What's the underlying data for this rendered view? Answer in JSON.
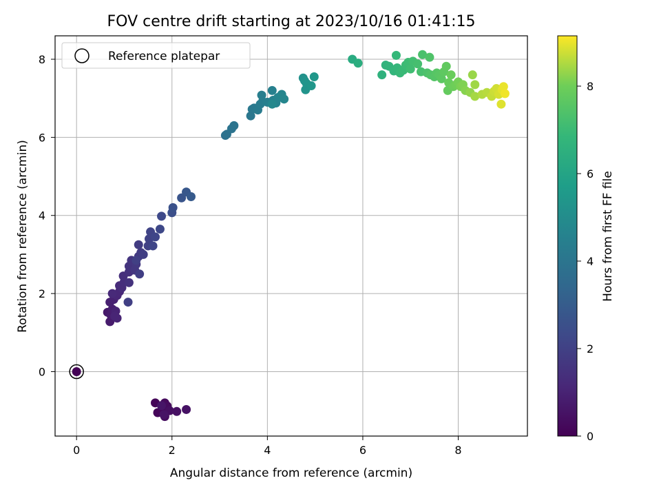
{
  "chart_data": {
    "type": "scatter",
    "title": "FOV centre drift starting at 2023/10/16 01:41:15",
    "xlabel": "Angular distance from reference (arcmin)",
    "ylabel": "Rotation from reference (arcmin)",
    "xlim": [
      -0.45,
      9.45
    ],
    "ylim": [
      -1.65,
      8.6
    ],
    "xticks": [
      0,
      2,
      4,
      6,
      8
    ],
    "yticks": [
      0,
      2,
      4,
      6,
      8
    ],
    "grid": true,
    "legend": {
      "position": "top-left",
      "entries": [
        "Reference platepar"
      ]
    },
    "reference_point": {
      "x": 0,
      "y": 0
    },
    "colorbar": {
      "label": "Hours from first FF file",
      "min": 0,
      "max": 9.15,
      "ticks": [
        0,
        2,
        4,
        6,
        8
      ],
      "colormap": "viridis"
    },
    "points": [
      {
        "x": 0,
        "y": 0,
        "c": 0.05
      },
      {
        "x": 1.65,
        "y": -0.8,
        "c": 0.1
      },
      {
        "x": 1.7,
        "y": -1.05,
        "c": 0.15
      },
      {
        "x": 1.8,
        "y": -0.95,
        "c": 0.2
      },
      {
        "x": 1.85,
        "y": -0.8,
        "c": 0.25
      },
      {
        "x": 1.9,
        "y": -0.88,
        "c": 0.3
      },
      {
        "x": 1.85,
        "y": -1.15,
        "c": 0.35
      },
      {
        "x": 1.95,
        "y": -1.0,
        "c": 0.4
      },
      {
        "x": 2.1,
        "y": -1.02,
        "c": 0.45
      },
      {
        "x": 2.3,
        "y": -0.97,
        "c": 0.5
      },
      {
        "x": 1.83,
        "y": -1.1,
        "c": 0.55
      },
      {
        "x": 1.78,
        "y": -0.87,
        "c": 0.6
      },
      {
        "x": 0.65,
        "y": 1.52,
        "c": 0.7
      },
      {
        "x": 0.7,
        "y": 1.28,
        "c": 0.75
      },
      {
        "x": 0.72,
        "y": 1.45,
        "c": 0.8
      },
      {
        "x": 0.75,
        "y": 1.6,
        "c": 0.85
      },
      {
        "x": 0.7,
        "y": 1.78,
        "c": 0.9
      },
      {
        "x": 0.78,
        "y": 1.85,
        "c": 0.95
      },
      {
        "x": 0.82,
        "y": 1.55,
        "c": 1.0
      },
      {
        "x": 0.85,
        "y": 1.37,
        "c": 1.02
      },
      {
        "x": 0.8,
        "y": 1.42,
        "c": 1.05
      },
      {
        "x": 0.85,
        "y": 1.95,
        "c": 1.1
      },
      {
        "x": 0.9,
        "y": 2.05,
        "c": 1.15
      },
      {
        "x": 0.75,
        "y": 2.0,
        "c": 1.2
      },
      {
        "x": 0.9,
        "y": 2.2,
        "c": 1.25
      },
      {
        "x": 0.95,
        "y": 2.15,
        "c": 1.3
      },
      {
        "x": 1.0,
        "y": 2.3,
        "c": 1.35
      },
      {
        "x": 0.98,
        "y": 2.45,
        "c": 1.4
      },
      {
        "x": 1.1,
        "y": 2.55,
        "c": 1.45
      },
      {
        "x": 1.1,
        "y": 2.28,
        "c": 1.5
      },
      {
        "x": 1.1,
        "y": 2.7,
        "c": 1.55
      },
      {
        "x": 1.15,
        "y": 2.85,
        "c": 1.6
      },
      {
        "x": 1.22,
        "y": 2.6,
        "c": 1.65
      },
      {
        "x": 1.25,
        "y": 2.75,
        "c": 1.7
      },
      {
        "x": 1.3,
        "y": 2.95,
        "c": 1.75
      },
      {
        "x": 1.35,
        "y": 3.05,
        "c": 1.8
      },
      {
        "x": 1.3,
        "y": 3.25,
        "c": 1.85
      },
      {
        "x": 1.4,
        "y": 3.0,
        "c": 1.9
      },
      {
        "x": 1.32,
        "y": 2.5,
        "c": 1.92
      },
      {
        "x": 1.08,
        "y": 1.78,
        "c": 1.95
      },
      {
        "x": 1.25,
        "y": 2.85,
        "c": 1.97
      },
      {
        "x": 1.5,
        "y": 3.22,
        "c": 2.0
      },
      {
        "x": 1.52,
        "y": 3.4,
        "c": 2.05
      },
      {
        "x": 1.55,
        "y": 3.58,
        "c": 2.1
      },
      {
        "x": 1.6,
        "y": 3.22,
        "c": 2.15
      },
      {
        "x": 1.65,
        "y": 3.45,
        "c": 2.2
      },
      {
        "x": 1.75,
        "y": 3.65,
        "c": 2.25
      },
      {
        "x": 1.78,
        "y": 3.98,
        "c": 2.3
      },
      {
        "x": 2.0,
        "y": 4.07,
        "c": 2.5
      },
      {
        "x": 2.02,
        "y": 4.2,
        "c": 2.6
      },
      {
        "x": 2.2,
        "y": 4.45,
        "c": 2.7
      },
      {
        "x": 2.3,
        "y": 4.6,
        "c": 2.8
      },
      {
        "x": 2.4,
        "y": 4.48,
        "c": 2.9
      },
      {
        "x": 3.12,
        "y": 6.05,
        "c": 3.8
      },
      {
        "x": 3.15,
        "y": 6.08,
        "c": 3.85
      },
      {
        "x": 3.25,
        "y": 6.22,
        "c": 3.9
      },
      {
        "x": 3.3,
        "y": 6.3,
        "c": 3.95
      },
      {
        "x": 3.65,
        "y": 6.55,
        "c": 4.1
      },
      {
        "x": 3.68,
        "y": 6.72,
        "c": 4.15
      },
      {
        "x": 3.72,
        "y": 6.75,
        "c": 4.2
      },
      {
        "x": 3.8,
        "y": 6.7,
        "c": 4.25
      },
      {
        "x": 3.85,
        "y": 6.85,
        "c": 4.3
      },
      {
        "x": 3.9,
        "y": 6.92,
        "c": 4.35
      },
      {
        "x": 3.88,
        "y": 7.08,
        "c": 4.4
      },
      {
        "x": 4.0,
        "y": 6.9,
        "c": 4.45
      },
      {
        "x": 4.1,
        "y": 7.2,
        "c": 4.5
      },
      {
        "x": 4.12,
        "y": 6.95,
        "c": 4.55
      },
      {
        "x": 4.18,
        "y": 6.88,
        "c": 4.6
      },
      {
        "x": 4.22,
        "y": 7.02,
        "c": 4.65
      },
      {
        "x": 4.3,
        "y": 7.1,
        "c": 4.7
      },
      {
        "x": 4.35,
        "y": 6.98,
        "c": 4.75
      },
      {
        "x": 4.1,
        "y": 6.85,
        "c": 4.8
      },
      {
        "x": 4.75,
        "y": 7.52,
        "c": 5.2
      },
      {
        "x": 4.78,
        "y": 7.45,
        "c": 5.25
      },
      {
        "x": 4.8,
        "y": 7.22,
        "c": 5.3
      },
      {
        "x": 4.82,
        "y": 7.38,
        "c": 5.35
      },
      {
        "x": 4.92,
        "y": 7.32,
        "c": 5.4
      },
      {
        "x": 4.98,
        "y": 7.55,
        "c": 5.45
      },
      {
        "x": 5.78,
        "y": 8.0,
        "c": 6.3
      },
      {
        "x": 5.9,
        "y": 7.9,
        "c": 6.4
      },
      {
        "x": 6.4,
        "y": 7.6,
        "c": 6.6
      },
      {
        "x": 6.48,
        "y": 7.85,
        "c": 6.65
      },
      {
        "x": 6.55,
        "y": 7.82,
        "c": 6.7
      },
      {
        "x": 6.65,
        "y": 7.7,
        "c": 6.75
      },
      {
        "x": 6.72,
        "y": 7.78,
        "c": 6.8
      },
      {
        "x": 6.7,
        "y": 8.1,
        "c": 6.85
      },
      {
        "x": 6.78,
        "y": 7.65,
        "c": 6.9
      },
      {
        "x": 6.85,
        "y": 7.72,
        "c": 6.95
      },
      {
        "x": 6.9,
        "y": 7.85,
        "c": 7.0
      },
      {
        "x": 6.95,
        "y": 7.92,
        "c": 7.05
      },
      {
        "x": 7.0,
        "y": 7.75,
        "c": 7.1
      },
      {
        "x": 7.05,
        "y": 7.95,
        "c": 7.15
      },
      {
        "x": 7.15,
        "y": 7.88,
        "c": 7.2
      },
      {
        "x": 7.22,
        "y": 7.68,
        "c": 7.25
      },
      {
        "x": 7.25,
        "y": 8.12,
        "c": 7.3
      },
      {
        "x": 7.35,
        "y": 7.65,
        "c": 7.35
      },
      {
        "x": 7.4,
        "y": 8.05,
        "c": 7.4
      },
      {
        "x": 7.42,
        "y": 7.6,
        "c": 7.45
      },
      {
        "x": 7.5,
        "y": 7.55,
        "c": 7.5
      },
      {
        "x": 7.55,
        "y": 7.65,
        "c": 7.55
      },
      {
        "x": 7.6,
        "y": 7.6,
        "c": 7.6
      },
      {
        "x": 7.65,
        "y": 7.5,
        "c": 7.65
      },
      {
        "x": 7.7,
        "y": 7.68,
        "c": 7.7
      },
      {
        "x": 7.75,
        "y": 7.82,
        "c": 7.75
      },
      {
        "x": 7.78,
        "y": 7.2,
        "c": 7.8
      },
      {
        "x": 7.8,
        "y": 7.4,
        "c": 7.85
      },
      {
        "x": 7.85,
        "y": 7.6,
        "c": 7.9
      },
      {
        "x": 7.9,
        "y": 7.3,
        "c": 7.95
      },
      {
        "x": 7.95,
        "y": 7.35,
        "c": 8.0
      },
      {
        "x": 8.0,
        "y": 7.42,
        "c": 8.05
      },
      {
        "x": 8.05,
        "y": 7.3,
        "c": 8.1
      },
      {
        "x": 8.1,
        "y": 7.35,
        "c": 8.15
      },
      {
        "x": 8.15,
        "y": 7.2,
        "c": 8.2
      },
      {
        "x": 8.25,
        "y": 7.15,
        "c": 8.3
      },
      {
        "x": 8.3,
        "y": 7.6,
        "c": 8.35
      },
      {
        "x": 8.35,
        "y": 7.35,
        "c": 8.4
      },
      {
        "x": 8.35,
        "y": 7.05,
        "c": 8.45
      },
      {
        "x": 8.5,
        "y": 7.1,
        "c": 8.55
      },
      {
        "x": 8.6,
        "y": 7.15,
        "c": 8.6
      },
      {
        "x": 8.7,
        "y": 7.05,
        "c": 8.7
      },
      {
        "x": 8.75,
        "y": 7.18,
        "c": 8.75
      },
      {
        "x": 8.8,
        "y": 7.25,
        "c": 8.8
      },
      {
        "x": 8.85,
        "y": 7.1,
        "c": 8.85
      },
      {
        "x": 8.9,
        "y": 6.85,
        "c": 8.9
      },
      {
        "x": 8.92,
        "y": 7.22,
        "c": 8.95
      },
      {
        "x": 8.95,
        "y": 7.3,
        "c": 9.0
      },
      {
        "x": 8.98,
        "y": 7.12,
        "c": 9.05
      }
    ]
  }
}
